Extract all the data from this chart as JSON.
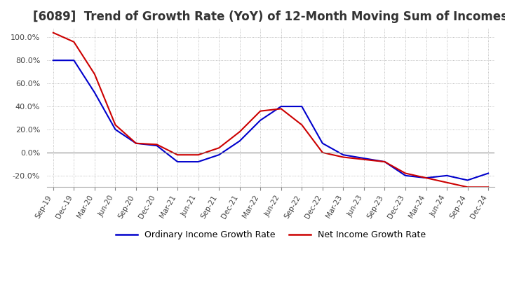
{
  "title": "[6089]  Trend of Growth Rate (YoY) of 12-Month Moving Sum of Incomes",
  "title_fontsize": 12,
  "ylim": [
    -30,
    108
  ],
  "yticks": [
    -20.0,
    0.0,
    20.0,
    40.0,
    60.0,
    80.0,
    100.0
  ],
  "background_color": "#ffffff",
  "grid_color": "#aaaaaa",
  "legend_labels": [
    "Ordinary Income Growth Rate",
    "Net Income Growth Rate"
  ],
  "legend_colors": [
    "#0000cc",
    "#cc0000"
  ],
  "x_labels": [
    "Sep-19",
    "Dec-19",
    "Mar-20",
    "Jun-20",
    "Sep-20",
    "Dec-20",
    "Mar-21",
    "Jun-21",
    "Sep-21",
    "Dec-21",
    "Mar-22",
    "Jun-22",
    "Sep-22",
    "Dec-22",
    "Mar-23",
    "Jun-23",
    "Sep-23",
    "Dec-23",
    "Mar-24",
    "Jun-24",
    "Sep-24",
    "Dec-24"
  ],
  "ordinary_income": [
    80.0,
    80.0,
    52.0,
    20.0,
    8.0,
    6.0,
    -8.0,
    -8.0,
    -2.0,
    10.0,
    28.0,
    40.0,
    40.0,
    8.0,
    -2.0,
    -5.0,
    -8.0,
    -20.0,
    -22.0,
    -20.0,
    -24.0,
    -18.0
  ],
  "net_income": [
    104.0,
    96.0,
    68.0,
    24.0,
    8.0,
    7.0,
    -2.0,
    -2.0,
    4.0,
    18.0,
    36.0,
    38.0,
    24.0,
    0.0,
    -4.0,
    -6.0,
    -8.0,
    -18.0,
    -22.0,
    -26.0,
    -30.0,
    -30.0
  ]
}
